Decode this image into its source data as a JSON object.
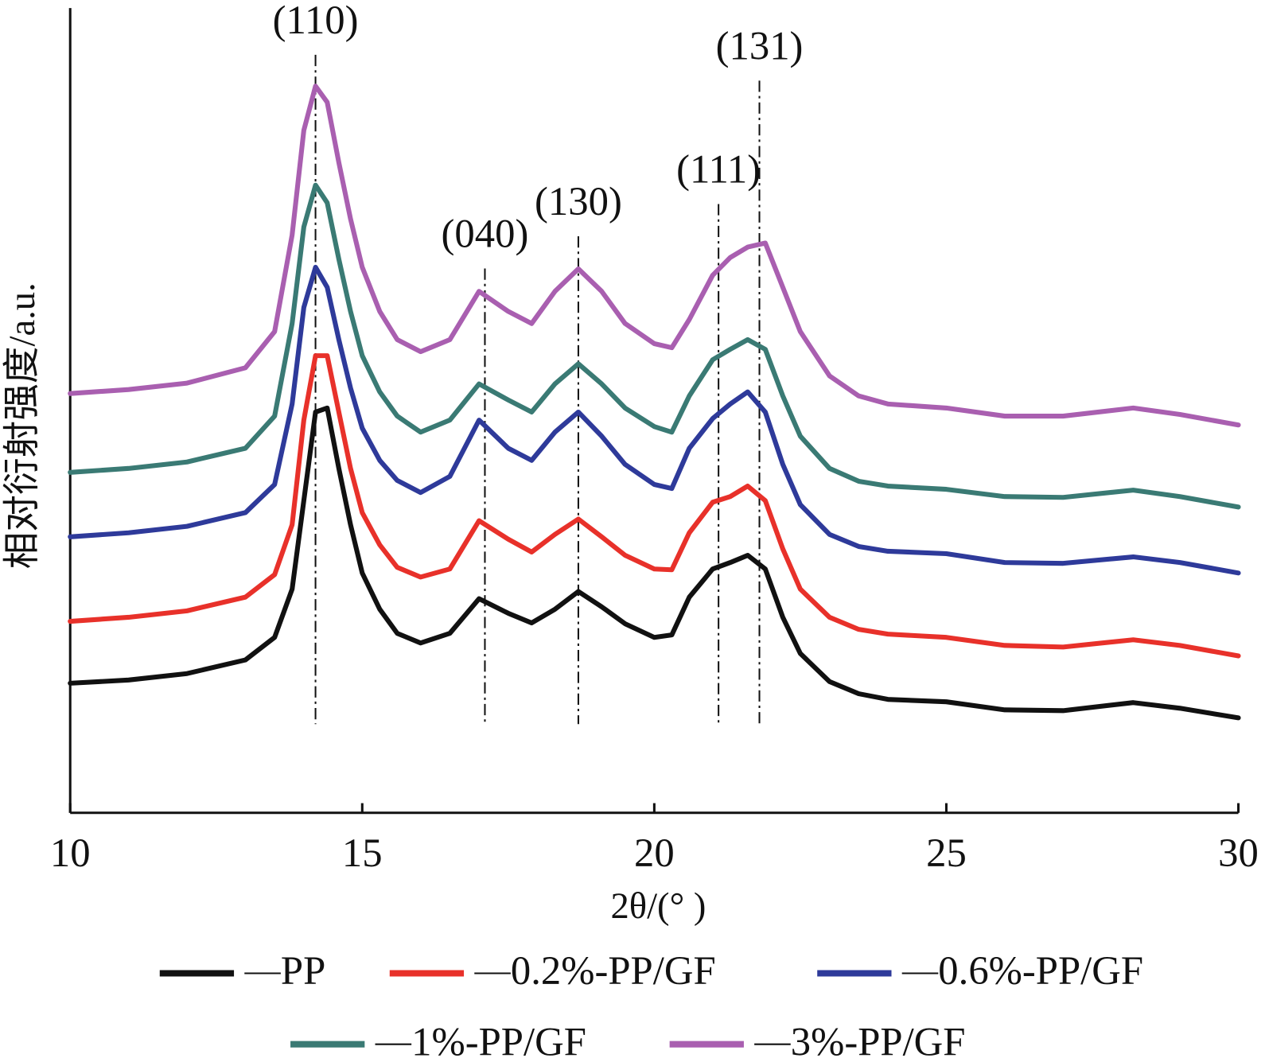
{
  "chart_data": {
    "type": "line",
    "xlabel": "2θ/(° )",
    "ylabel": "相对衍射强度/a.u.",
    "x": [
      10,
      11,
      12,
      13,
      13.5,
      13.8,
      14.0,
      14.2,
      14.4,
      14.6,
      14.8,
      15.0,
      15.3,
      15.6,
      16.0,
      16.5,
      17.0,
      17.5,
      17.9,
      18.3,
      18.7,
      19.1,
      19.5,
      20.0,
      20.3,
      20.6,
      21.0,
      21.3,
      21.6,
      21.9,
      22.2,
      22.5,
      23,
      23.5,
      24,
      25,
      26,
      27,
      28.2,
      29,
      30
    ],
    "xlim": [
      10,
      30
    ],
    "xticks": [
      10,
      15,
      20,
      25,
      30
    ],
    "ylim": [
      0,
      100
    ],
    "series": [
      {
        "name": "PP",
        "color": "#111111",
        "values": [
          16.1,
          16.5,
          17.3,
          19.0,
          21.8,
          27.8,
          38.8,
          49.8,
          50.3,
          42.8,
          35.8,
          29.8,
          25.3,
          22.3,
          21.1,
          22.3,
          26.6,
          24.8,
          23.6,
          25.3,
          27.5,
          25.6,
          23.5,
          21.8,
          22.1,
          26.8,
          30.3,
          31.1,
          32.0,
          30.3,
          24.3,
          19.8,
          16.3,
          14.8,
          14.1,
          13.8,
          12.8,
          12.7,
          13.7,
          13.0,
          11.8
        ]
      },
      {
        "name": "0.2%-PP/GF",
        "color": "#e8312a",
        "values": [
          23.8,
          24.3,
          25.1,
          26.8,
          29.6,
          35.8,
          48.8,
          56.8,
          56.8,
          49.8,
          42.8,
          37.3,
          33.3,
          30.5,
          29.3,
          30.3,
          36.3,
          34.0,
          32.4,
          34.6,
          36.5,
          34.3,
          32.0,
          30.3,
          30.2,
          34.8,
          38.6,
          39.3,
          40.6,
          38.8,
          32.8,
          27.8,
          24.3,
          22.8,
          22.2,
          21.8,
          20.8,
          20.6,
          21.5,
          20.8,
          19.5
        ]
      },
      {
        "name": "0.6%-PP/GF",
        "color": "#2e3a9a",
        "values": [
          34.3,
          34.8,
          35.6,
          37.3,
          40.8,
          50.8,
          62.8,
          67.8,
          65.3,
          58.8,
          52.8,
          47.8,
          43.8,
          41.3,
          39.8,
          41.8,
          48.8,
          45.3,
          43.8,
          47.3,
          49.8,
          46.8,
          43.3,
          40.8,
          40.3,
          45.3,
          49.0,
          50.8,
          52.3,
          49.8,
          43.3,
          38.3,
          34.6,
          33.1,
          32.5,
          32.2,
          31.1,
          31.0,
          31.8,
          31.1,
          29.8
        ]
      },
      {
        "name": "1%-PP/GF",
        "color": "#3a7a74",
        "values": [
          42.3,
          42.8,
          43.6,
          45.3,
          49.3,
          60.8,
          72.8,
          78.0,
          75.8,
          68.8,
          62.3,
          56.8,
          52.3,
          49.3,
          47.3,
          48.8,
          53.3,
          51.3,
          49.8,
          53.3,
          55.8,
          53.3,
          50.3,
          48.0,
          47.3,
          51.8,
          56.3,
          57.6,
          58.8,
          57.6,
          51.8,
          46.8,
          42.8,
          41.2,
          40.6,
          40.2,
          39.3,
          39.2,
          40.1,
          39.3,
          38.0
        ]
      },
      {
        "name": "3%-PP/GF",
        "color": "#a95fb0",
        "values": [
          52.1,
          52.6,
          53.4,
          55.3,
          59.8,
          71.8,
          84.8,
          90.3,
          88.3,
          80.8,
          73.8,
          67.8,
          62.3,
          58.8,
          57.3,
          58.8,
          64.8,
          62.3,
          60.8,
          64.8,
          67.6,
          64.8,
          60.8,
          58.3,
          57.8,
          61.3,
          66.8,
          69.0,
          70.3,
          70.8,
          65.3,
          59.8,
          54.3,
          51.8,
          50.8,
          50.3,
          49.3,
          49.3,
          50.3,
          49.5,
          48.2
        ]
      }
    ],
    "annotations": [
      {
        "text": "(110)",
        "x": 14.2
      },
      {
        "text": "(040)",
        "x": 17.1
      },
      {
        "text": "(130)",
        "x": 18.7
      },
      {
        "text": "(111)",
        "x": 21.1
      },
      {
        "text": "(131)",
        "x": 21.8
      }
    ]
  }
}
